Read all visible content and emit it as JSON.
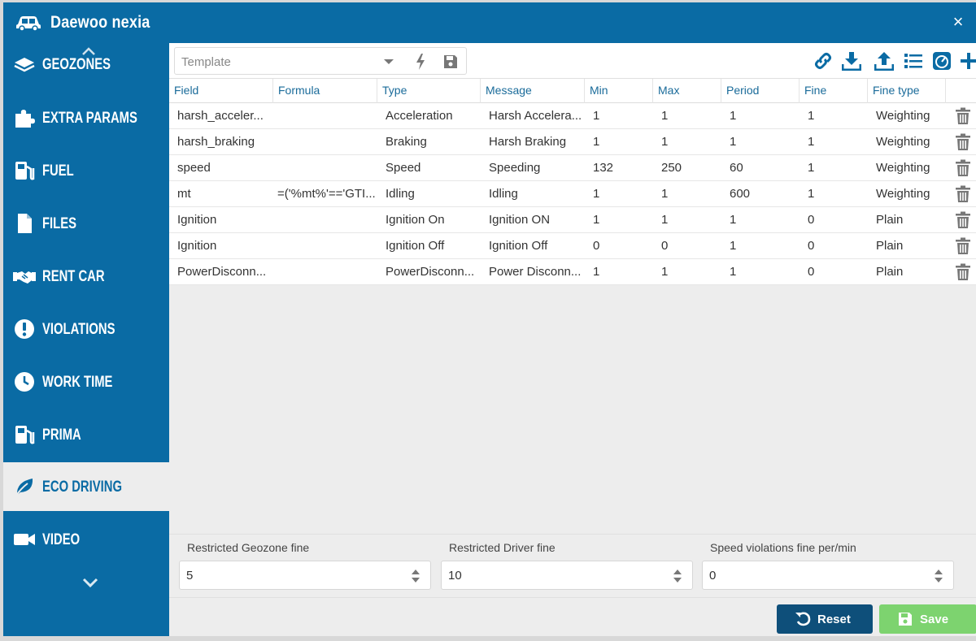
{
  "window": {
    "title": "Daewoo nexia",
    "car_icon": "car-icon",
    "close_label": "×"
  },
  "colors": {
    "primary": "#0a6ba4",
    "header_text": "#1a6b9a",
    "reset_button": "#0e4f7a",
    "save_button": "#7dd36f"
  },
  "sidebar": {
    "items": [
      {
        "label": "GEOZONES",
        "icon": "layers-icon"
      },
      {
        "label": "EXTRA PARAMS",
        "icon": "puzzle-icon"
      },
      {
        "label": "FUEL",
        "icon": "fuel-pump-icon"
      },
      {
        "label": "FILES",
        "icon": "file-icon"
      },
      {
        "label": "RENT CAR",
        "icon": "handshake-icon"
      },
      {
        "label": "VIOLATIONS",
        "icon": "exclamation-circle-icon"
      },
      {
        "label": "WORK TIME",
        "icon": "clock-icon"
      },
      {
        "label": "PRIMA",
        "icon": "fuel-pump-icon"
      },
      {
        "label": "ECO DRIVING",
        "icon": "leaf-icon",
        "active": true
      },
      {
        "label": "VIDEO",
        "icon": "video-camera-icon"
      }
    ]
  },
  "toolbar": {
    "template_placeholder": "Template",
    "icons": [
      "link-icon",
      "download-icon",
      "upload-icon",
      "list-icon",
      "gauge-icon",
      "plus-icon"
    ]
  },
  "table": {
    "columns": [
      "Field",
      "Formula",
      "Type",
      "Message",
      "Min",
      "Max",
      "Period",
      "Fine",
      "Fine type"
    ],
    "rows": [
      [
        "harsh_acceler...",
        "",
        "Acceleration",
        "Harsh Accelera...",
        "1",
        "1",
        "1",
        "1",
        "Weighting"
      ],
      [
        "harsh_braking",
        "",
        "Braking",
        "Harsh Braking",
        "1",
        "1",
        "1",
        "1",
        "Weighting"
      ],
      [
        "speed",
        "",
        "Speed",
        "Speeding",
        "132",
        "250",
        "60",
        "1",
        "Weighting"
      ],
      [
        "mt",
        "=('%mt%'=='GTI...",
        "Idling",
        "Idling",
        "1",
        "1",
        "600",
        "1",
        "Weighting"
      ],
      [
        "Ignition",
        "",
        "Ignition On",
        "Ignition ON",
        "1",
        "1",
        "1",
        "0",
        "Plain"
      ],
      [
        "Ignition",
        "",
        "Ignition Off",
        "Ignition Off",
        "0",
        "0",
        "1",
        "0",
        "Plain"
      ],
      [
        "PowerDisconn...",
        "",
        "PowerDisconn...",
        "Power Disconn...",
        "1",
        "1",
        "1",
        "0",
        "Plain"
      ]
    ]
  },
  "footer": {
    "fields": [
      {
        "label": "Restricted Geozone fine",
        "value": "5"
      },
      {
        "label": "Restricted Driver fine",
        "value": "10"
      },
      {
        "label": "Speed violations fine per/min",
        "value": "0"
      }
    ],
    "reset_label": "Reset",
    "save_label": "Save"
  }
}
